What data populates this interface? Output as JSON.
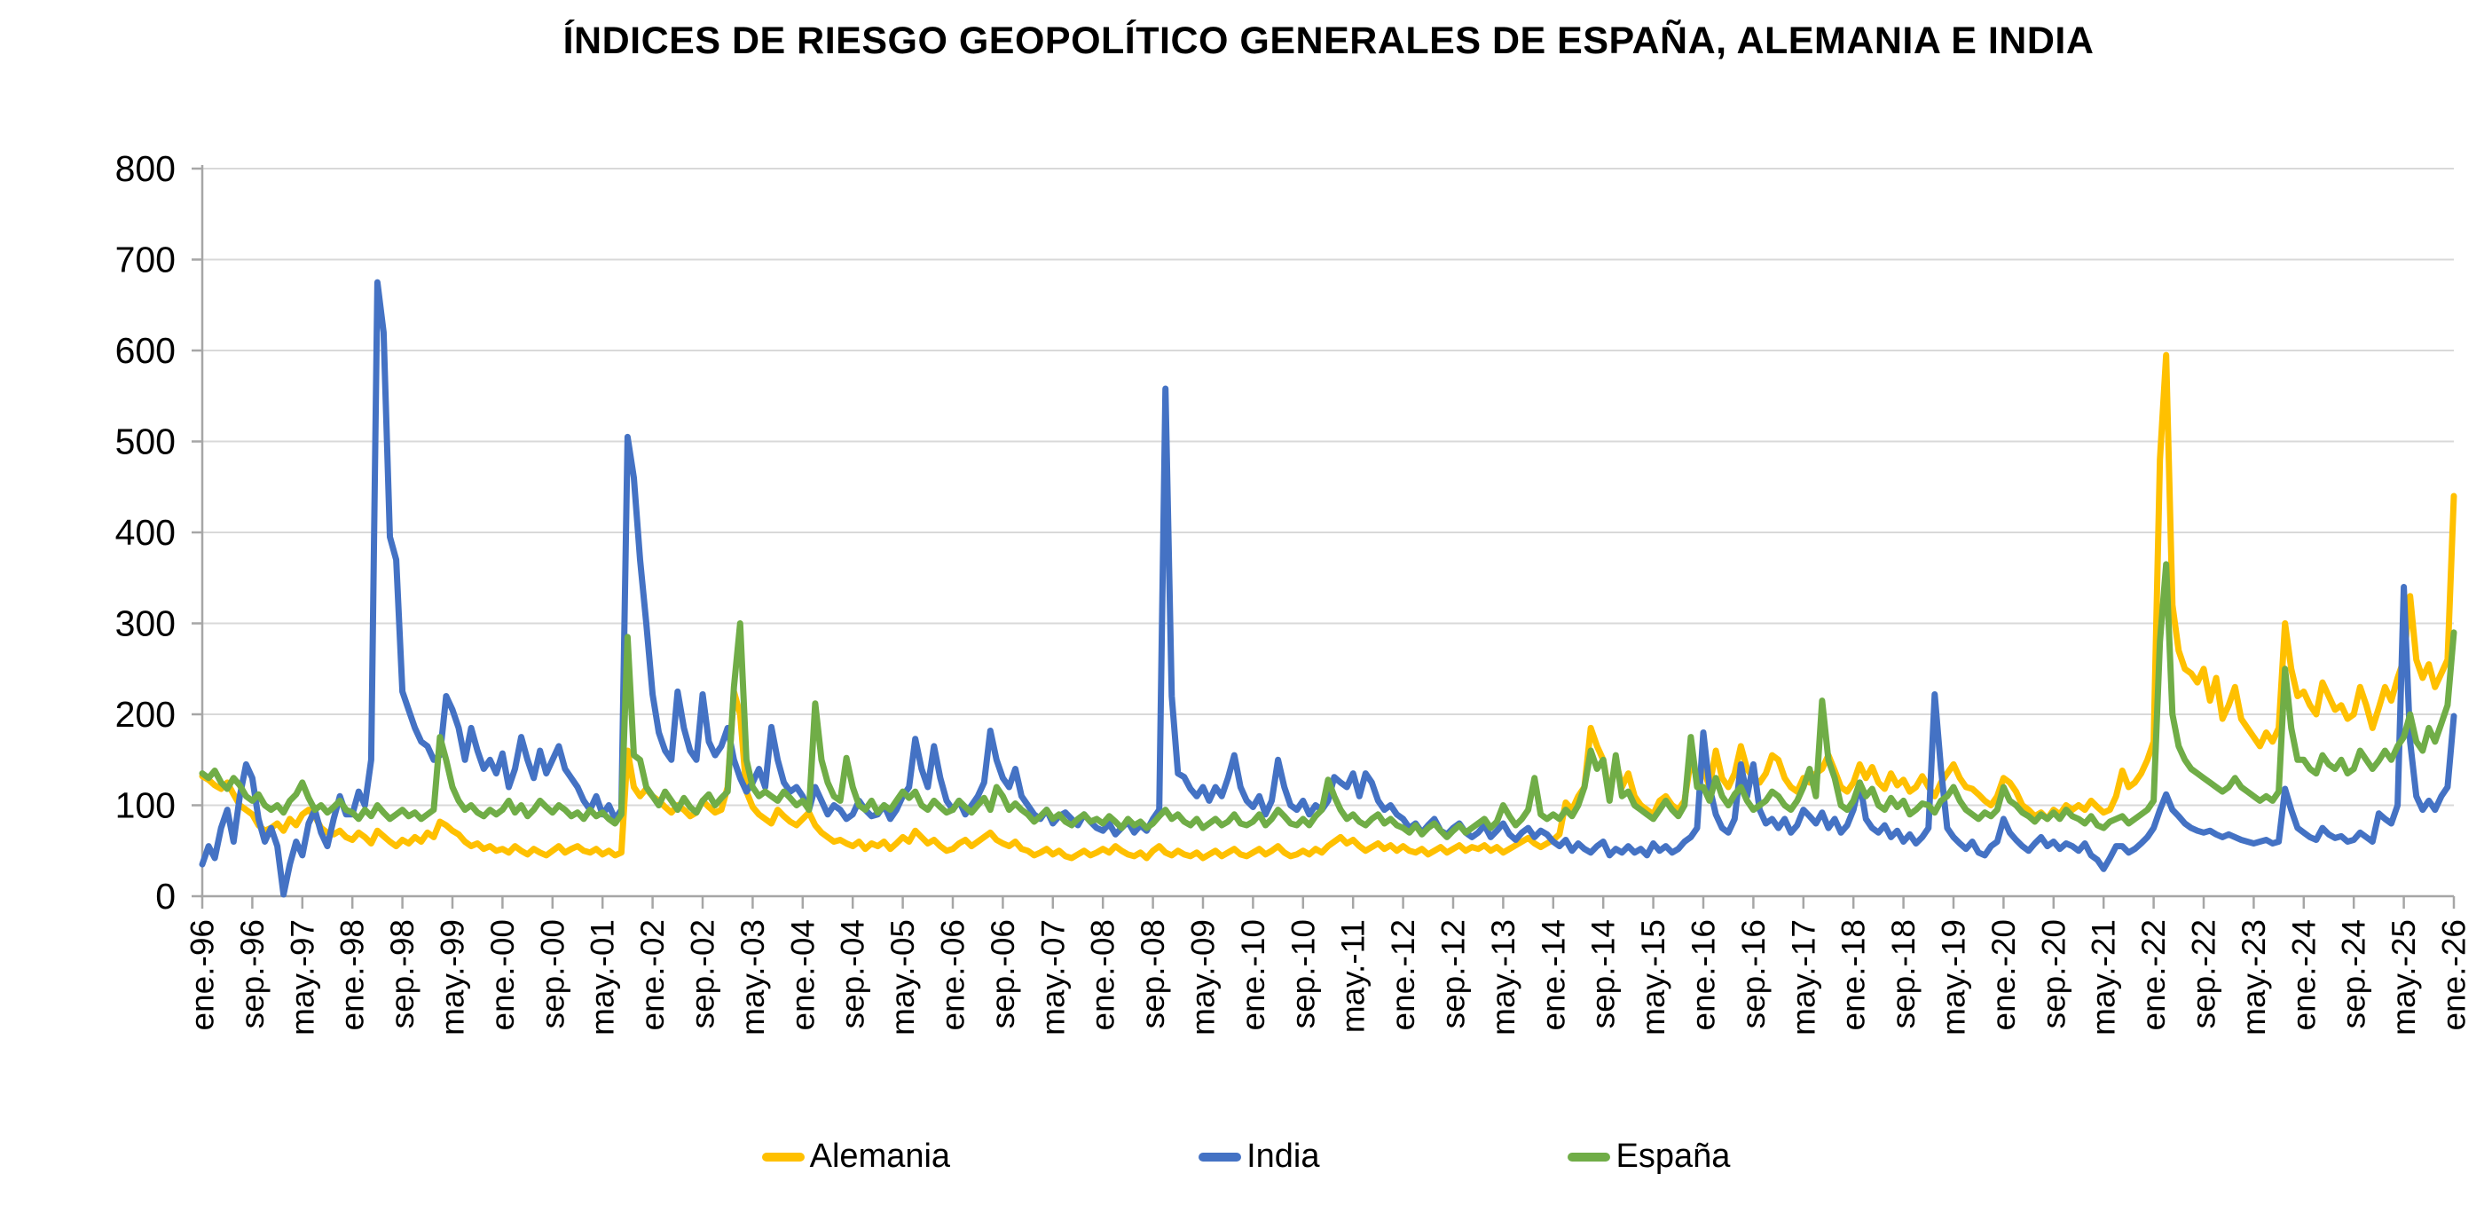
{
  "title": "ÍNDICES DE RIESGO GEOPOLÍTICO GENERALES DE ESPAÑA, ALEMANIA E INDIA",
  "colors": {
    "grid": "#D9D9D9",
    "axis": "#A6A6A6",
    "tick_text": "#000000"
  },
  "chart_data": {
    "type": "line",
    "title": "ÍNDICES DE RIESGO GEOPOLÍTICO GENERALES DE ESPAÑA, ALEMANIA E INDIA",
    "xlabel": "",
    "ylabel": "",
    "ylim": [
      0,
      800
    ],
    "y_ticks": [
      0,
      100,
      200,
      300,
      400,
      500,
      600,
      700,
      800
    ],
    "grid": "horizontal",
    "legend_position": "bottom",
    "x_unit": "monthly from ene.-96 to ene.-26",
    "x_tick_every_months": 8,
    "x_tick_labels": [
      "ene.-96",
      "sep.-96",
      "may.-97",
      "ene.-98",
      "sep.-98",
      "may.-99",
      "ene.-00",
      "sep.-00",
      "may.-01",
      "ene.-02",
      "sep.-02",
      "may.-03",
      "ene.-04",
      "sep.-04",
      "may.-05",
      "ene.-06",
      "sep.-06",
      "may.-07",
      "ene.-08",
      "sep.-08",
      "may.-09",
      "ene.-10",
      "sep.-10",
      "may.-11",
      "ene.-12",
      "sep.-12",
      "may.-13",
      "ene.-14",
      "sep.-14",
      "may.-15",
      "ene.-16",
      "sep.-16",
      "may.-17",
      "ene.-18",
      "sep.-18",
      "may.-19",
      "ene.-20",
      "sep.-20",
      "may.-21",
      "ene.-22",
      "sep.-22",
      "may.-23",
      "ene.-24",
      "sep.-24",
      "may.-25",
      "ene.-26"
    ],
    "series": [
      {
        "name": "Alemania",
        "color": "#FFC000",
        "values": [
          132,
          128,
          122,
          118,
          125,
          112,
          100,
          95,
          90,
          78,
          72,
          75,
          80,
          72,
          85,
          78,
          90,
          95,
          88,
          75,
          70,
          68,
          72,
          65,
          62,
          70,
          65,
          58,
          72,
          66,
          60,
          55,
          62,
          58,
          65,
          60,
          70,
          65,
          82,
          78,
          72,
          68,
          60,
          55,
          58,
          52,
          55,
          50,
          52,
          48,
          55,
          50,
          46,
          52,
          48,
          45,
          50,
          55,
          48,
          52,
          55,
          50,
          48,
          52,
          46,
          50,
          45,
          48,
          160,
          120,
          110,
          118,
          110,
          105,
          98,
          92,
          100,
          95,
          88,
          92,
          105,
          98,
          92,
          95,
          120,
          225,
          200,
          115,
          98,
          90,
          85,
          80,
          95,
          88,
          82,
          78,
          85,
          92,
          78,
          70,
          65,
          60,
          62,
          58,
          55,
          60,
          52,
          58,
          55,
          60,
          52,
          58,
          65,
          60,
          72,
          65,
          58,
          62,
          55,
          50,
          52,
          58,
          62,
          55,
          60,
          65,
          70,
          62,
          58,
          55,
          60,
          52,
          50,
          45,
          48,
          52,
          46,
          50,
          44,
          42,
          46,
          50,
          45,
          48,
          52,
          48,
          55,
          50,
          46,
          44,
          48,
          42,
          50,
          55,
          48,
          45,
          50,
          46,
          44,
          48,
          42,
          46,
          50,
          44,
          48,
          52,
          46,
          44,
          48,
          52,
          46,
          50,
          55,
          48,
          44,
          46,
          50,
          46,
          52,
          48,
          55,
          60,
          65,
          58,
          62,
          55,
          50,
          54,
          58,
          52,
          56,
          50,
          55,
          50,
          48,
          52,
          46,
          50,
          54,
          48,
          52,
          56,
          50,
          54,
          52,
          56,
          50,
          54,
          48,
          52,
          56,
          60,
          64,
          58,
          54,
          58,
          62,
          68,
          103,
          95,
          110,
          120,
          185,
          165,
          150,
          110,
          150,
          120,
          135,
          110,
          100,
          95,
          90,
          105,
          110,
          100,
          95,
          105,
          150,
          130,
          140,
          120,
          160,
          130,
          120,
          135,
          165,
          140,
          130,
          125,
          135,
          155,
          150,
          130,
          120,
          115,
          130,
          125,
          135,
          140,
          155,
          138,
          120,
          115,
          125,
          145,
          130,
          142,
          125,
          118,
          135,
          122,
          128,
          115,
          120,
          132,
          120,
          110,
          125,
          135,
          145,
          130,
          120,
          118,
          112,
          105,
          100,
          110,
          130,
          125,
          115,
          100,
          95,
          88,
          92,
          85,
          95,
          90,
          100,
          95,
          100,
          95,
          105,
          98,
          92,
          95,
          110,
          138,
          120,
          125,
          135,
          150,
          170,
          480,
          595,
          320,
          270,
          250,
          245,
          235,
          250,
          215,
          240,
          195,
          210,
          230,
          195,
          185,
          175,
          165,
          180,
          170,
          185,
          300,
          250,
          220,
          225,
          210,
          200,
          235,
          220,
          205,
          210,
          195,
          200,
          230,
          210,
          185,
          207,
          230,
          215,
          240,
          260,
          330,
          260,
          240,
          255,
          230,
          245,
          260,
          440
        ]
      },
      {
        "name": "India",
        "color": "#4472C4",
        "values": [
          35,
          55,
          42,
          75,
          95,
          60,
          110,
          145,
          130,
          85,
          60,
          75,
          55,
          2,
          35,
          60,
          45,
          80,
          95,
          70,
          55,
          85,
          110,
          90,
          90,
          115,
          100,
          150,
          675,
          620,
          395,
          370,
          225,
          205,
          185,
          170,
          165,
          150,
          155,
          220,
          205,
          185,
          150,
          185,
          160,
          140,
          150,
          135,
          157,
          120,
          140,
          175,
          150,
          130,
          160,
          135,
          150,
          165,
          140,
          130,
          120,
          105,
          95,
          110,
          90,
          100,
          85,
          95,
          505,
          460,
          370,
          300,
          222,
          180,
          160,
          150,
          225,
          185,
          160,
          150,
          222,
          170,
          155,
          165,
          185,
          150,
          130,
          115,
          125,
          140,
          120,
          186,
          150,
          125,
          115,
          120,
          110,
          95,
          120,
          105,
          90,
          100,
          95,
          85,
          90,
          105,
          95,
          88,
          90,
          100,
          85,
          95,
          110,
          120,
          173,
          140,
          120,
          165,
          130,
          105,
          95,
          105,
          90,
          100,
          110,
          125,
          182,
          150,
          130,
          120,
          140,
          110,
          100,
          90,
          85,
          95,
          80,
          88,
          92,
          85,
          78,
          90,
          82,
          75,
          72,
          80,
          68,
          75,
          82,
          70,
          78,
          72,
          85,
          95,
          558,
          220,
          135,
          131,
          118,
          110,
          120,
          105,
          120,
          110,
          130,
          155,
          120,
          105,
          98,
          110,
          90,
          105,
          150,
          120,
          100,
          95,
          105,
          90,
          100,
          95,
          105,
          131,
          125,
          120,
          135,
          110,
          135,
          125,
          105,
          95,
          100,
          90,
          85,
          75,
          80,
          70,
          78,
          85,
          72,
          68,
          75,
          80,
          70,
          65,
          70,
          78,
          65,
          72,
          80,
          68,
          62,
          70,
          75,
          65,
          72,
          68,
          60,
          55,
          62,
          50,
          58,
          52,
          48,
          55,
          60,
          45,
          52,
          48,
          55,
          48,
          52,
          45,
          58,
          50,
          55,
          48,
          52,
          60,
          65,
          75,
          180,
          120,
          90,
          75,
          70,
          85,
          145,
          110,
          145,
          95,
          80,
          85,
          75,
          85,
          70,
          78,
          95,
          88,
          80,
          92,
          75,
          85,
          70,
          78,
          95,
          125,
          85,
          75,
          70,
          78,
          65,
          72,
          60,
          68,
          58,
          65,
          75,
          222,
          140,
          75,
          65,
          58,
          52,
          60,
          48,
          45,
          55,
          60,
          85,
          70,
          62,
          55,
          50,
          58,
          65,
          55,
          60,
          52,
          58,
          55,
          50,
          58,
          45,
          40,
          30,
          42,
          55,
          55,
          48,
          52,
          58,
          65,
          75,
          95,
          112,
          95,
          88,
          80,
          75,
          72,
          70,
          72,
          68,
          65,
          68,
          65,
          62,
          60,
          58,
          60,
          62,
          58,
          60,
          118,
          95,
          75,
          70,
          65,
          62,
          75,
          68,
          64,
          66,
          60,
          62,
          70,
          65,
          60,
          91,
          85,
          80,
          100,
          340,
          170,
          110,
          95,
          105,
          95,
          110,
          120,
          198
        ]
      },
      {
        "name": "España",
        "color": "#70AD47",
        "values": [
          135,
          130,
          138,
          125,
          118,
          130,
          122,
          110,
          105,
          112,
          100,
          95,
          100,
          92,
          105,
          112,
          125,
          108,
          95,
          100,
          92,
          98,
          105,
          95,
          92,
          85,
          95,
          88,
          100,
          92,
          85,
          90,
          95,
          88,
          92,
          85,
          90,
          95,
          175,
          150,
          120,
          105,
          95,
          100,
          92,
          88,
          95,
          90,
          95,
          105,
          92,
          100,
          88,
          95,
          105,
          98,
          92,
          100,
          95,
          88,
          92,
          85,
          95,
          88,
          92,
          85,
          80,
          90,
          285,
          155,
          150,
          120,
          110,
          100,
          115,
          105,
          95,
          108,
          98,
          92,
          105,
          112,
          100,
          108,
          115,
          230,
          300,
          150,
          120,
          110,
          115,
          110,
          105,
          115,
          108,
          100,
          105,
          95,
          212,
          150,
          125,
          110,
          105,
          152,
          120,
          100,
          95,
          105,
          92,
          100,
          95,
          105,
          115,
          108,
          115,
          100,
          95,
          105,
          98,
          92,
          95,
          105,
          98,
          92,
          100,
          108,
          95,
          120,
          110,
          95,
          102,
          95,
          90,
          82,
          88,
          95,
          85,
          90,
          82,
          78,
          85,
          90,
          82,
          85,
          80,
          88,
          82,
          75,
          85,
          78,
          82,
          75,
          80,
          88,
          95,
          85,
          90,
          82,
          78,
          85,
          75,
          80,
          85,
          78,
          82,
          90,
          80,
          78,
          82,
          90,
          78,
          85,
          95,
          88,
          80,
          78,
          85,
          78,
          88,
          95,
          128,
          110,
          95,
          85,
          90,
          82,
          78,
          85,
          90,
          80,
          85,
          78,
          75,
          70,
          78,
          68,
          75,
          80,
          72,
          65,
          72,
          78,
          70,
          75,
          80,
          85,
          75,
          82,
          100,
          88,
          78,
          85,
          95,
          130,
          90,
          85,
          90,
          85,
          95,
          88,
          100,
          120,
          160,
          140,
          150,
          105,
          155,
          110,
          115,
          100,
          95,
          90,
          85,
          95,
          105,
          95,
          88,
          100,
          175,
          120,
          120,
          105,
          130,
          110,
          100,
          112,
          120,
          105,
          95,
          100,
          105,
          115,
          110,
          100,
          95,
          105,
          120,
          140,
          110,
          215,
          150,
          130,
          100,
          95,
          105,
          125,
          110,
          118,
          100,
          95,
          108,
          98,
          105,
          90,
          95,
          102,
          100,
          92,
          105,
          110,
          120,
          105,
          95,
          90,
          85,
          92,
          88,
          95,
          120,
          105,
          100,
          92,
          88,
          82,
          90,
          85,
          92,
          85,
          95,
          88,
          85,
          80,
          88,
          78,
          75,
          82,
          85,
          88,
          80,
          85,
          90,
          95,
          105,
          280,
          365,
          200,
          165,
          150,
          140,
          135,
          130,
          125,
          120,
          115,
          120,
          130,
          120,
          115,
          110,
          105,
          110,
          105,
          115,
          250,
          185,
          150,
          150,
          140,
          135,
          155,
          145,
          140,
          150,
          135,
          140,
          160,
          150,
          140,
          149,
          160,
          150,
          165,
          175,
          200,
          170,
          160,
          185,
          170,
          190,
          210,
          290
        ]
      }
    ]
  }
}
